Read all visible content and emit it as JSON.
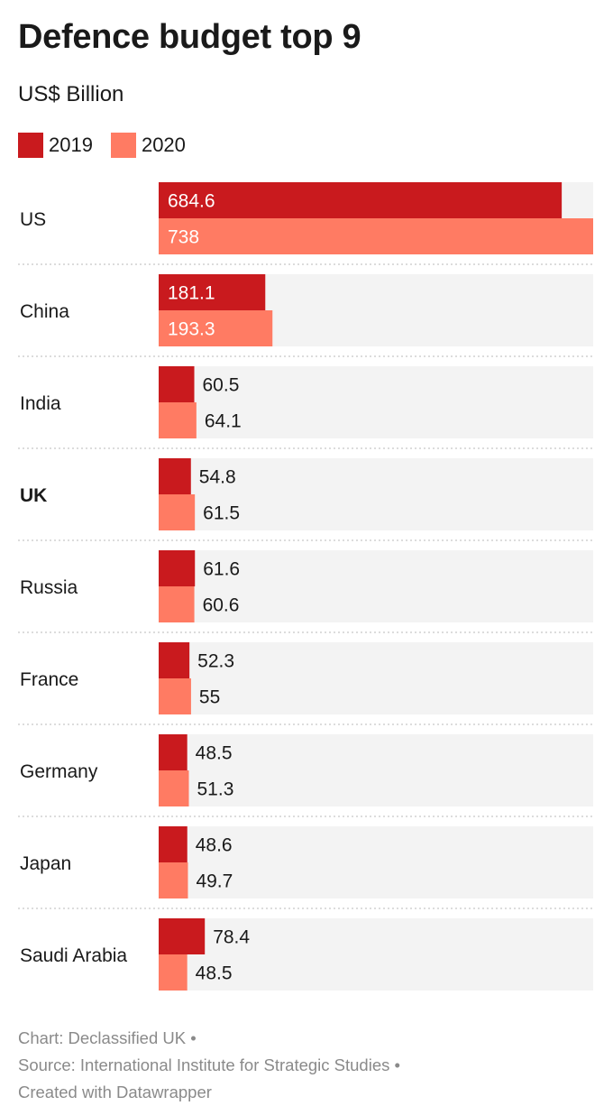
{
  "title": "Defence budget top 9",
  "subtitle": "US$ Billion",
  "colors": {
    "y2019": "#c91a1e",
    "y2020": "#ff7b63",
    "track": "#f3f3f3",
    "separator": "#d0d0d0"
  },
  "legend": [
    {
      "label": "2019",
      "color": "#c91a1e"
    },
    {
      "label": "2020",
      "color": "#ff7b63"
    }
  ],
  "chart_data": {
    "type": "bar",
    "orientation": "horizontal",
    "categories": [
      "US",
      "China",
      "India",
      "UK",
      "Russia",
      "France",
      "Germany",
      "Japan",
      "Saudi Arabia"
    ],
    "highlight": "UK",
    "series": [
      {
        "name": "2019",
        "values": [
          684.6,
          181.1,
          60.5,
          54.8,
          61.6,
          52.3,
          48.5,
          48.6,
          78.4
        ],
        "labels": [
          "684.6",
          "181.1",
          "60.5",
          "54.8",
          "61.6",
          "52.3",
          "48.5",
          "48.6",
          "78.4"
        ]
      },
      {
        "name": "2020",
        "values": [
          738,
          193.3,
          64.1,
          61.5,
          60.6,
          55,
          51.3,
          49.7,
          48.5
        ],
        "labels": [
          "738",
          "193.3",
          "64.1",
          "61.5",
          "60.6",
          "55",
          "51.3",
          "49.7",
          "48.5"
        ]
      }
    ],
    "xlim": [
      0,
      738
    ],
    "grid": false
  },
  "footer": {
    "line1": "Chart: Declassified UK •",
    "line2": "Source: International Institute for Strategic Studies •",
    "line3": "Created with Datawrapper"
  }
}
